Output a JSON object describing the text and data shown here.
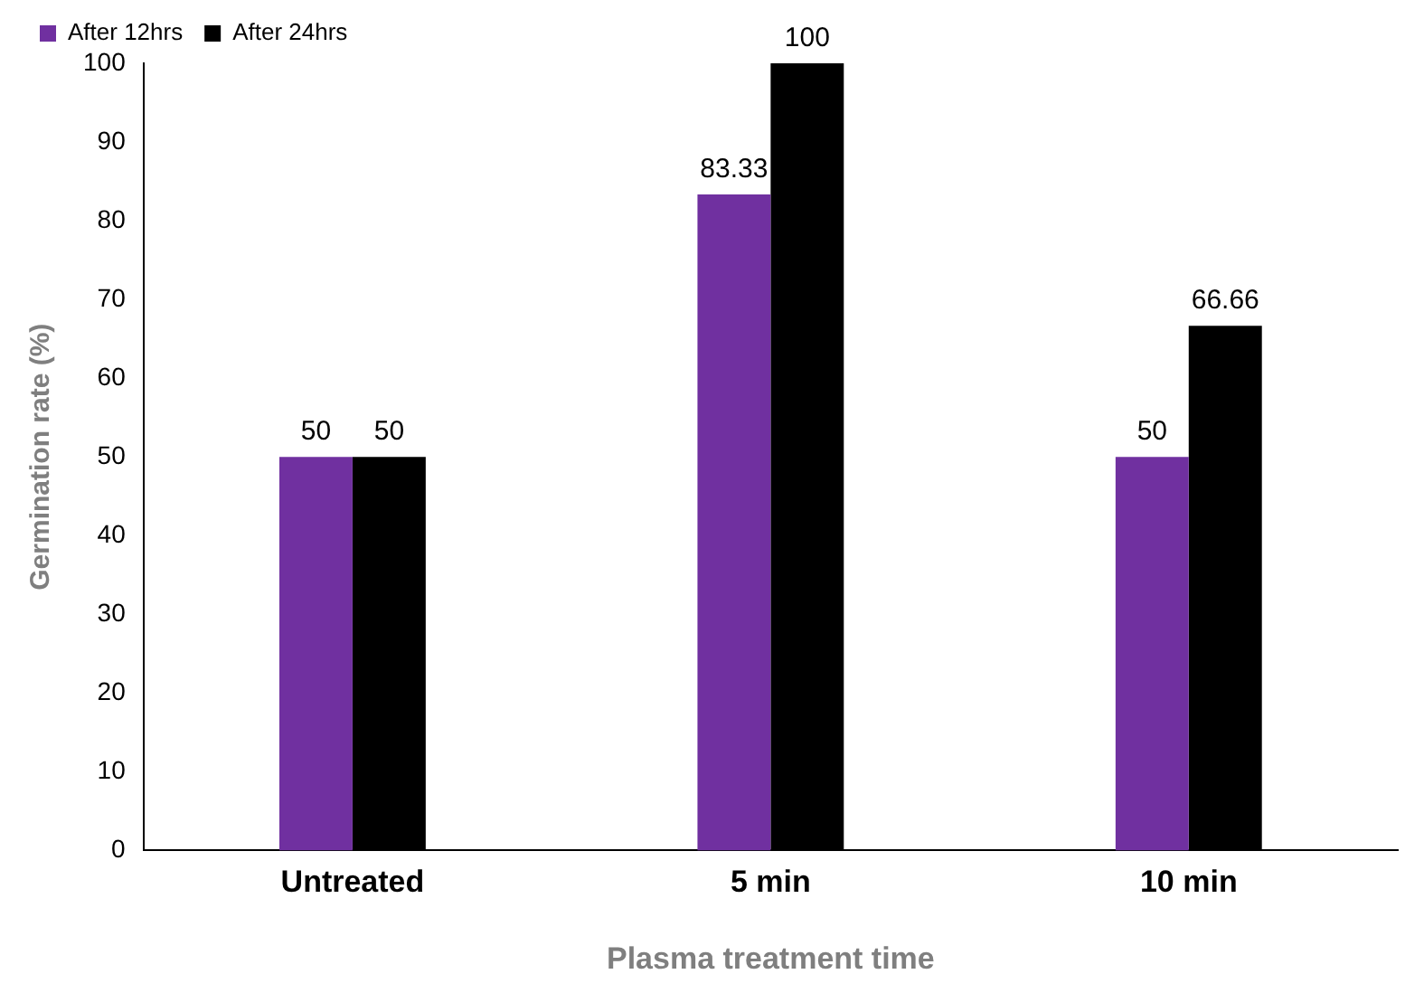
{
  "chart_data": {
    "type": "bar",
    "xlabel": "Plasma treatment time",
    "ylabel": "Germination rate (%)",
    "categories": [
      "Untreated",
      "5 min",
      "10 min"
    ],
    "series": [
      {
        "name": "After 12hrs",
        "color": "#7030a0",
        "values": [
          50,
          83.33,
          50
        ]
      },
      {
        "name": "After 24hrs",
        "color": "#000000",
        "values": [
          50,
          100,
          66.66
        ]
      }
    ],
    "ylim": [
      0,
      100
    ],
    "yticks": [
      0,
      10,
      20,
      30,
      40,
      50,
      60,
      70,
      80,
      90,
      100
    ],
    "grid": false,
    "legend": "top left",
    "data_labels": true
  }
}
